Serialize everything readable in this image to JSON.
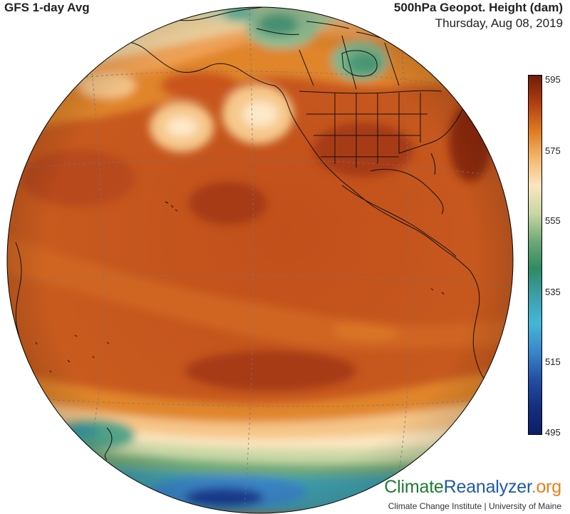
{
  "header": {
    "left_title": "GFS 1-day Avg",
    "right_title": "500hPa Geopot. Height (dam)",
    "date": "Thursday, Aug 08, 2019"
  },
  "colorbar": {
    "labels": [
      "595",
      "575",
      "555",
      "535",
      "515",
      "495"
    ],
    "min": 495,
    "max": 595,
    "stops": [
      "#6e1d09",
      "#b13e12",
      "#dd7b22",
      "#f3b86e",
      "#fbe6bf",
      "#c8d7a4",
      "#6ea978",
      "#2f8a62",
      "#3f9fac",
      "#44b7d6",
      "#3a86c9",
      "#244fa5",
      "#152f7e",
      "#0c1e66"
    ]
  },
  "brand": {
    "part1": "Climate",
    "part2": "Reanalyzer",
    "part3": ".org",
    "subtitle": "Climate Change Institute | University of Maine"
  }
}
